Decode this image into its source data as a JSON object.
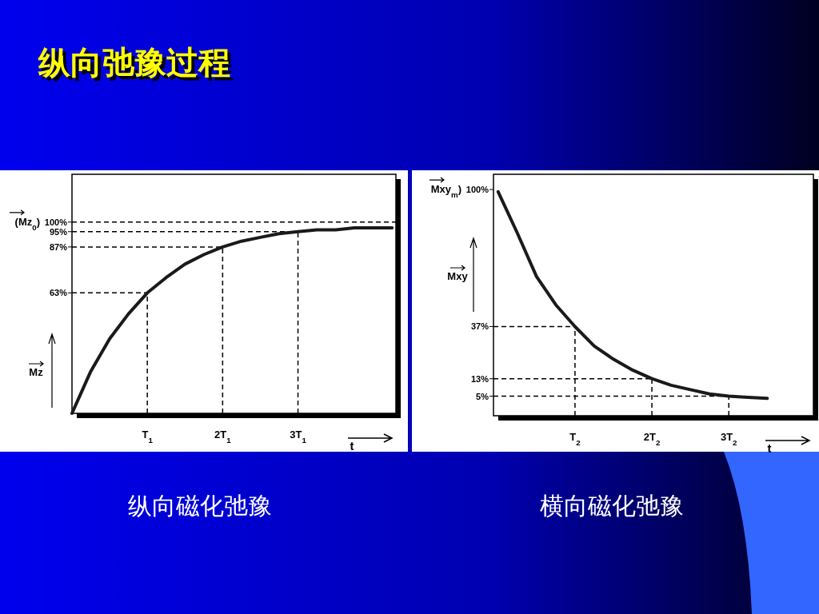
{
  "chart_data": [
    {
      "type": "line",
      "title": "纵向弛豫过程",
      "ylabel": "Mz",
      "xlabel": "t",
      "annotations": [
        "(Mz$_{0}$)",
        "纵向磁化弛豫"
      ],
      "categories": [
        null,
        null,
        null,
        null,
        "T$_{1}$",
        null,
        null,
        null,
        "2T$_{1}$",
        null,
        null,
        null,
        "3T$_{1}$",
        null,
        null,
        null,
        null,
        null
      ],
      "values": [
        0,
        22,
        39,
        52,
        63,
        71,
        78,
        83,
        87,
        90,
        92,
        94,
        95,
        96,
        96,
        97,
        97,
        97
      ],
      "color": "#1a1a1a",
      "marker": "none",
      "ylim": [
        0,
        125
      ],
      "yticks": [
        {
          "value": 63,
          "label": "63%"
        },
        {
          "value": 87,
          "label": "87%"
        },
        {
          "value": 95,
          "label": "95%"
        },
        {
          "value": 100,
          "label": "100%"
        }
      ],
      "ref_lines": [
        {
          "axis": "y",
          "value": 100,
          "line_style": "dashed"
        },
        {
          "axis": "y",
          "value": 95,
          "line_style": "dashed"
        },
        {
          "axis": "y",
          "value": 87,
          "line_style": "dashed"
        },
        {
          "axis": "y",
          "value": 63,
          "line_style": "dashed"
        },
        {
          "axis": "x",
          "value": "T$_{1}$",
          "line_style": "dashed"
        },
        {
          "axis": "x",
          "value": "2T$_{1}$",
          "line_style": "dashed"
        },
        {
          "axis": "x",
          "value": "3T$_{1}$",
          "line_style": "dashed"
        }
      ]
    },
    {
      "type": "line",
      "ylabel": "Mxy",
      "xlabel": "t",
      "annotations": [
        "Mxy$_{m}$)",
        "横向磁化弛豫"
      ],
      "categories": [
        null,
        null,
        null,
        null,
        "T$_{2}$",
        null,
        null,
        null,
        "2T$_{2}$",
        null,
        null,
        null,
        "3T$_{2}$",
        null,
        null
      ],
      "values": [
        99,
        80,
        60,
        47,
        37,
        28,
        22,
        17,
        13,
        10,
        8,
        6,
        5,
        4.5,
        4
      ],
      "color": "#1a1a1a",
      "marker": "none",
      "ylim": [
        -4,
        107
      ],
      "yticks": [
        {
          "value": 5,
          "label": "5%"
        },
        {
          "value": 13,
          "label": "13%"
        },
        {
          "value": 37,
          "label": "37%"
        },
        {
          "value": 100,
          "label": "100%"
        }
      ],
      "ref_lines": [
        {
          "axis": "y",
          "value": 37,
          "line_style": "dashed"
        },
        {
          "axis": "y",
          "value": 13,
          "line_style": "dashed"
        },
        {
          "axis": "y",
          "value": 5,
          "line_style": "dashed"
        },
        {
          "axis": "x",
          "value": "T$_{2}$",
          "line_style": "dashed"
        },
        {
          "axis": "x",
          "value": "2T$_{2}$",
          "line_style": "dashed"
        },
        {
          "axis": "x",
          "value": "3T$_{2}$",
          "line_style": "dashed"
        }
      ]
    }
  ]
}
